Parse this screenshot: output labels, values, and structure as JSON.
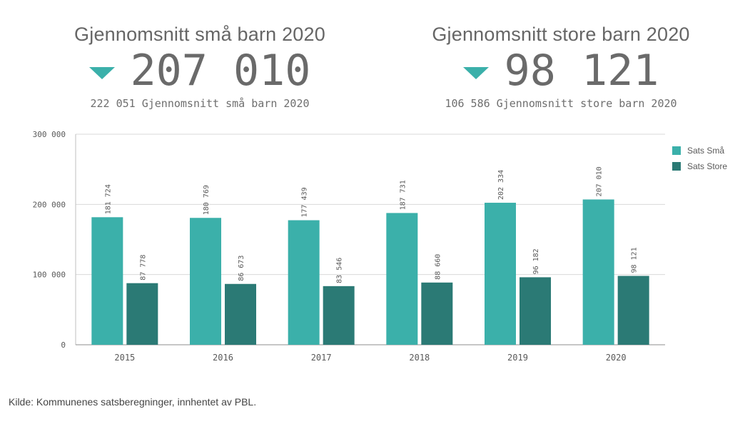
{
  "kpis": {
    "small": {
      "title": "Gjennomsnitt små barn 2020",
      "value": "207 010",
      "comparison": "222 051 Gjennomsnitt små barn 2020"
    },
    "large": {
      "title": "Gjennomsnitt store barn 2020",
      "value": "98 121",
      "comparison": "106 586 Gjennomsnitt store barn 2020"
    }
  },
  "colors": {
    "sats_sma": "#3bb0aa",
    "sats_store": "#2b7a75",
    "kpi_arrow": "#3bb0aa"
  },
  "icons": {
    "kpi_trend": "triangle-down-icon"
  },
  "chart_data": {
    "type": "bar",
    "categories": [
      "2015",
      "2016",
      "2017",
      "2018",
      "2019",
      "2020"
    ],
    "series": [
      {
        "name": "Sats Små",
        "values": [
          181724,
          180769,
          177439,
          187731,
          202334,
          207010
        ]
      },
      {
        "name": "Sats Store",
        "values": [
          87778,
          86673,
          83546,
          88660,
          96182,
          98121
        ]
      }
    ],
    "data_labels": {
      "Sats Små": [
        "181 724",
        "180 769",
        "177 439",
        "187 731",
        "202 334",
        "207 010"
      ],
      "Sats Store": [
        "87 778",
        "86 673",
        "83 546",
        "88 660",
        "96 182",
        "98 121"
      ]
    },
    "yticks": [
      0,
      100000,
      200000,
      300000
    ],
    "ytick_labels": [
      "0",
      "100 000",
      "200 000",
      "300 000"
    ],
    "ylim": [
      0,
      300000
    ],
    "grid": true,
    "legend_position": "right"
  },
  "source": "Kilde: Kommunenes satsberegninger, innhentet av PBL."
}
